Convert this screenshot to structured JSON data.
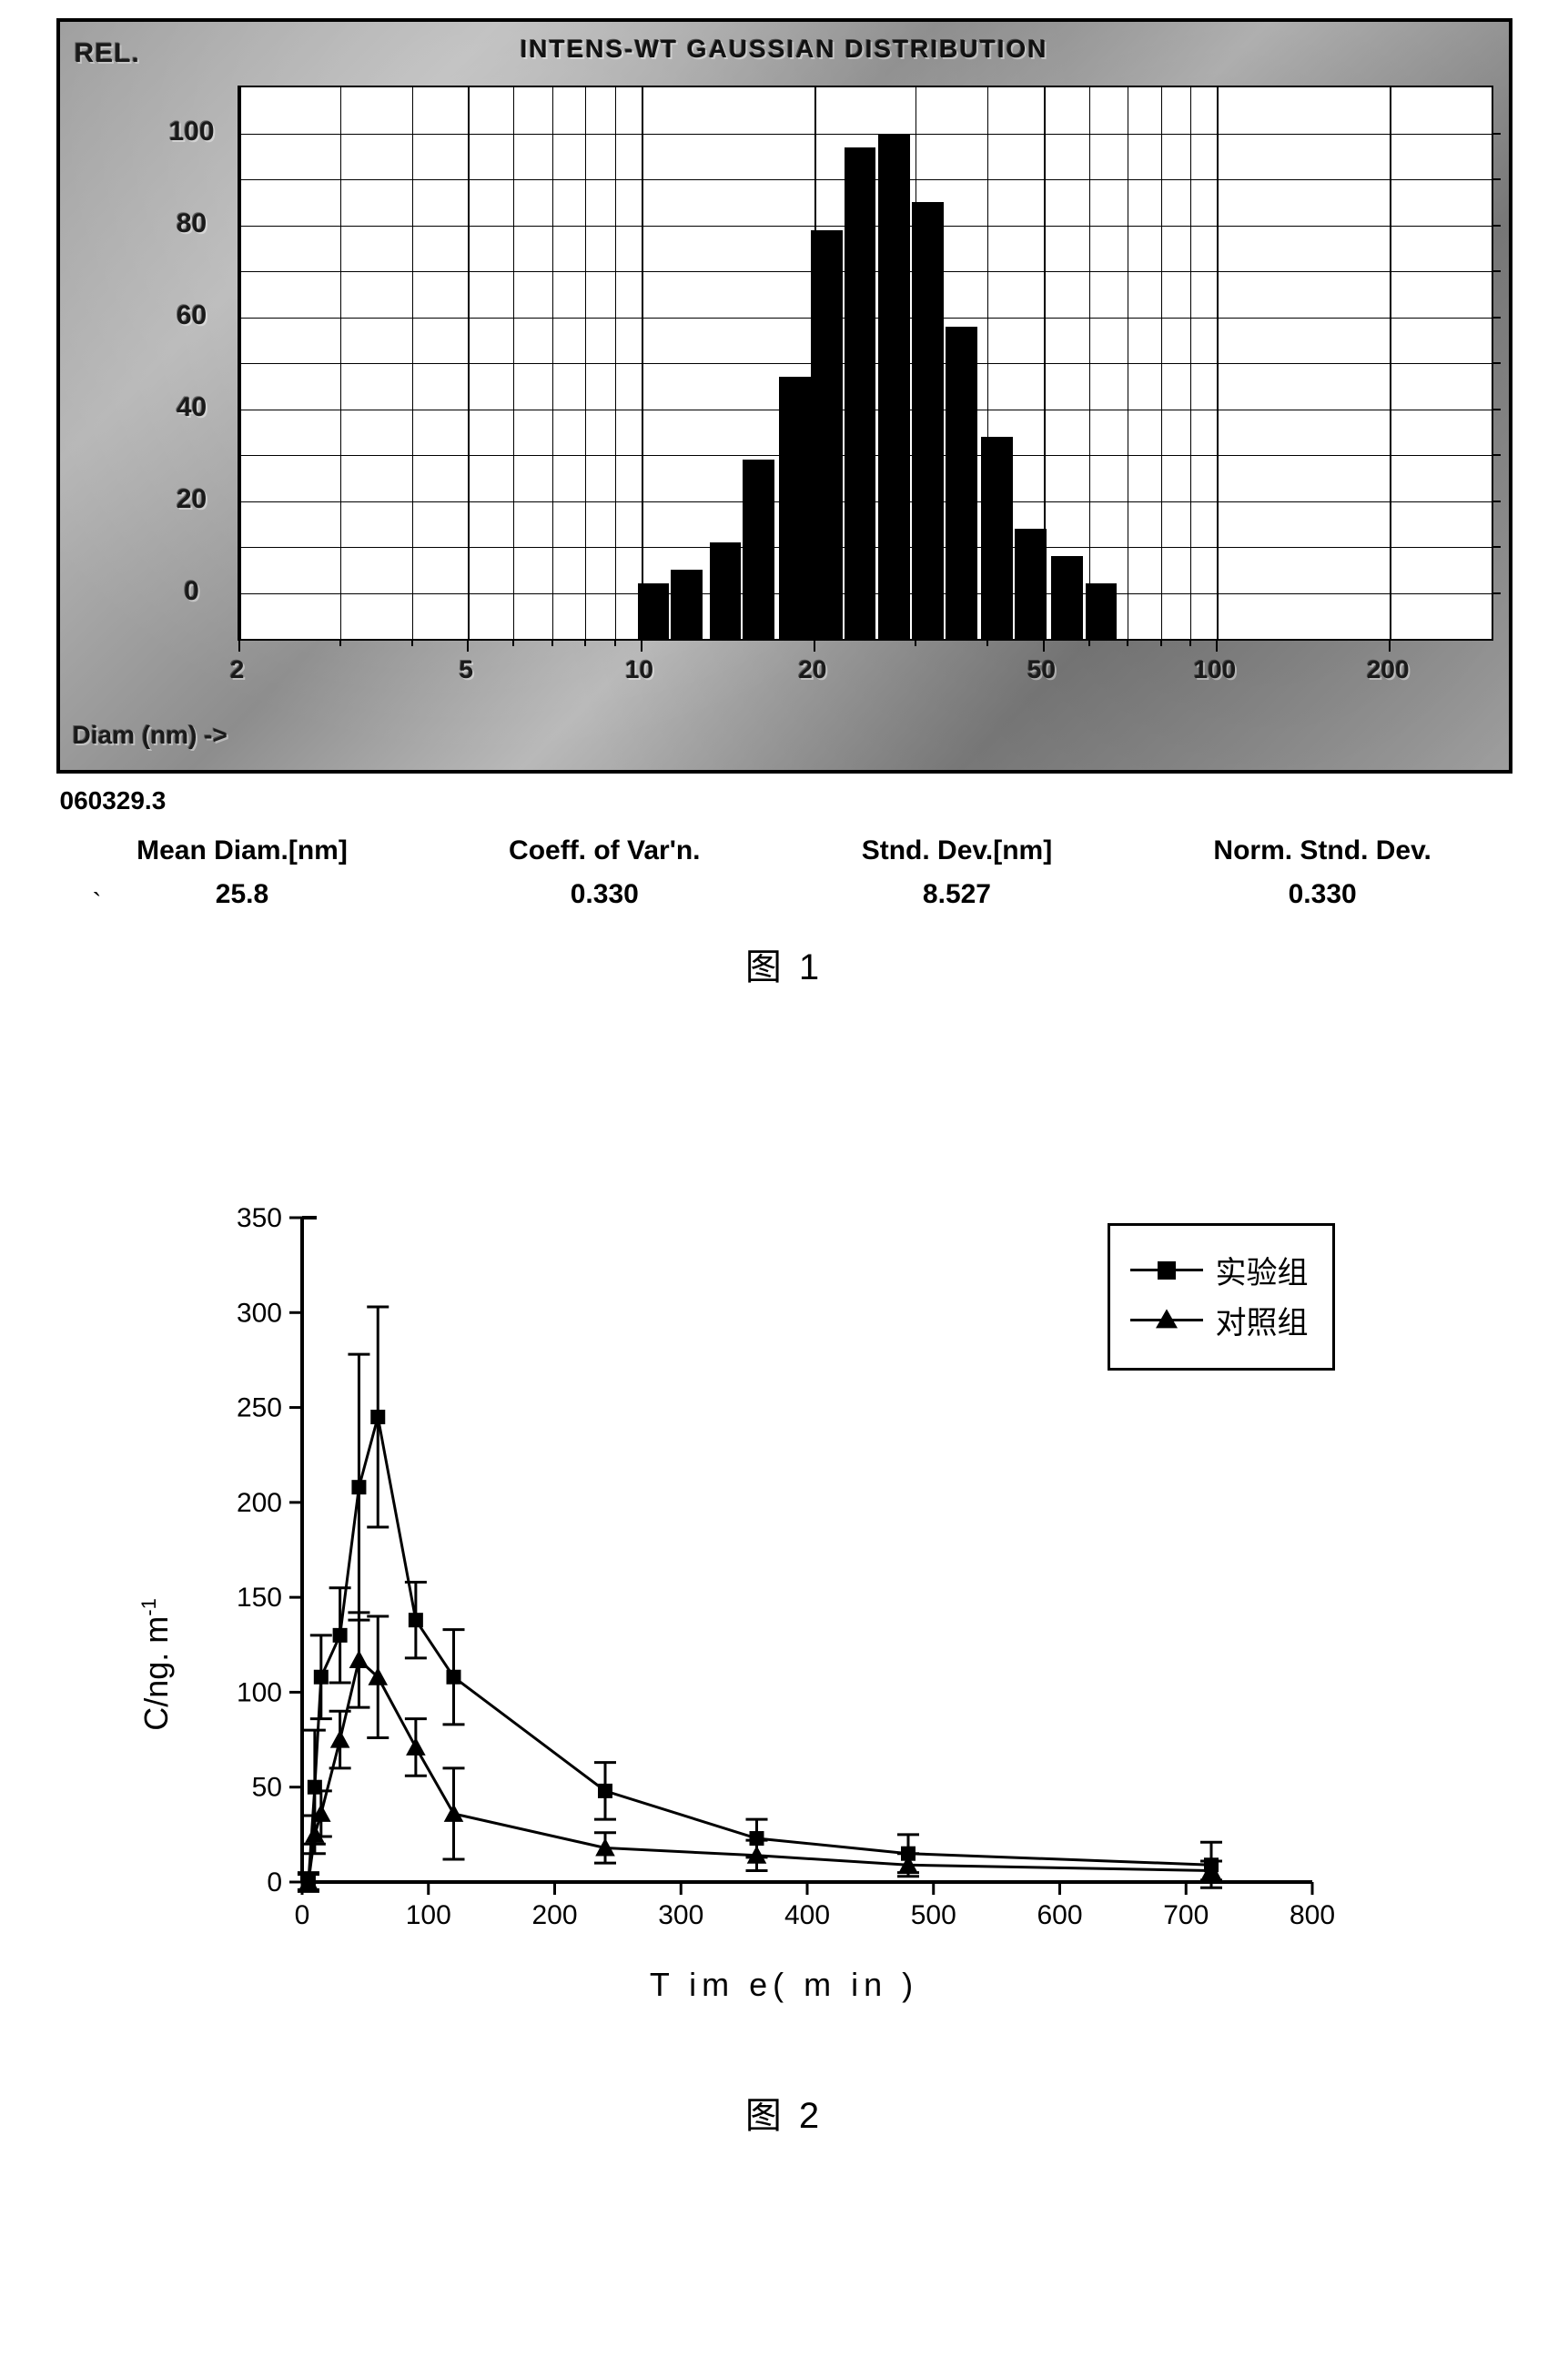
{
  "figure1": {
    "panel_title": "INTENS-WT GAUSSIAN DISTRIBUTION",
    "rel_label": "REL.",
    "x_axis_label": "Diam (nm) ->",
    "subtitle": "060329.3",
    "chart": {
      "type": "bar",
      "x_scale": "log",
      "background_color": "#ffffff",
      "bar_color": "#000000",
      "grid_color": "#000000",
      "xlim_log10": [
        0.301,
        2.477
      ],
      "ylim": [
        -10,
        110
      ],
      "y_ticks": [
        0,
        20,
        40,
        60,
        80,
        100
      ],
      "x_tick_values": [
        2,
        5,
        10,
        20,
        50,
        100,
        200
      ],
      "x_tick_labels": [
        "2",
        "5",
        "10",
        "20",
        "50",
        "100",
        "200"
      ],
      "y_minor_grid_step": 10,
      "bars": [
        {
          "x": 10.5,
          "value": 2
        },
        {
          "x": 12.0,
          "value": 5
        },
        {
          "x": 14.0,
          "value": 11
        },
        {
          "x": 16.0,
          "value": 29
        },
        {
          "x": 18.5,
          "value": 47
        },
        {
          "x": 21.0,
          "value": 79
        },
        {
          "x": 24.0,
          "value": 97
        },
        {
          "x": 27.5,
          "value": 100
        },
        {
          "x": 31.5,
          "value": 85
        },
        {
          "x": 36.0,
          "value": 58
        },
        {
          "x": 41.5,
          "value": 34
        },
        {
          "x": 47.5,
          "value": 14
        },
        {
          "x": 55.0,
          "value": 8
        },
        {
          "x": 63.0,
          "value": 2
        }
      ],
      "bar_width_log10": 0.055
    },
    "stats": [
      {
        "label": "Mean Diam.[nm]",
        "value": "25.8"
      },
      {
        "label": "Coeff. of Var'n.",
        "value": "0.330"
      },
      {
        "label": "Stnd. Dev.[nm]",
        "value": "8.527"
      },
      {
        "label": "Norm. Stnd. Dev.",
        "value": "0.330"
      }
    ],
    "caption": "图 1"
  },
  "figure2": {
    "type": "line",
    "x_axis_label": "T im e( m in )",
    "y_axis_label_html": "C/ng. m<sup>-1</sup>",
    "xlim": [
      0,
      800
    ],
    "ylim": [
      0,
      350
    ],
    "x_ticks": [
      0,
      100,
      200,
      300,
      400,
      500,
      600,
      700,
      800
    ],
    "y_ticks": [
      0,
      50,
      100,
      150,
      200,
      250,
      300,
      350
    ],
    "line_width": 3,
    "line_color": "#000000",
    "errorbar_cap_width": 12,
    "errorbar_width": 3,
    "series": [
      {
        "name": "实验组",
        "marker": "square",
        "marker_size": 16,
        "points": [
          {
            "x": 5,
            "y": 0,
            "err": 5
          },
          {
            "x": 10,
            "y": 50,
            "err": 30
          },
          {
            "x": 15,
            "y": 108,
            "err": 22
          },
          {
            "x": 30,
            "y": 130,
            "err": 25
          },
          {
            "x": 45,
            "y": 208,
            "err": 70
          },
          {
            "x": 60,
            "y": 245,
            "err": 58
          },
          {
            "x": 90,
            "y": 138,
            "err": 20
          },
          {
            "x": 120,
            "y": 108,
            "err": 25
          },
          {
            "x": 240,
            "y": 48,
            "err": 15
          },
          {
            "x": 360,
            "y": 23,
            "err": 10
          },
          {
            "x": 480,
            "y": 15,
            "err": 10
          },
          {
            "x": 720,
            "y": 9,
            "err": 12
          }
        ]
      },
      {
        "name": "对照组",
        "marker": "triangle",
        "marker_size": 18,
        "points": [
          {
            "x": 5,
            "y": 0,
            "err": 4
          },
          {
            "x": 10,
            "y": 25,
            "err": 10
          },
          {
            "x": 15,
            "y": 36,
            "err": 12
          },
          {
            "x": 30,
            "y": 75,
            "err": 15
          },
          {
            "x": 45,
            "y": 117,
            "err": 25
          },
          {
            "x": 60,
            "y": 108,
            "err": 32
          },
          {
            "x": 90,
            "y": 71,
            "err": 15
          },
          {
            "x": 120,
            "y": 36,
            "err": 24
          },
          {
            "x": 240,
            "y": 18,
            "err": 8
          },
          {
            "x": 360,
            "y": 14,
            "err": 8
          },
          {
            "x": 480,
            "y": 9,
            "err": 6
          },
          {
            "x": 720,
            "y": 6,
            "err": 5
          }
        ]
      }
    ],
    "legend": {
      "series1": "实验组",
      "series2": "对照组"
    },
    "caption": "图 2"
  }
}
